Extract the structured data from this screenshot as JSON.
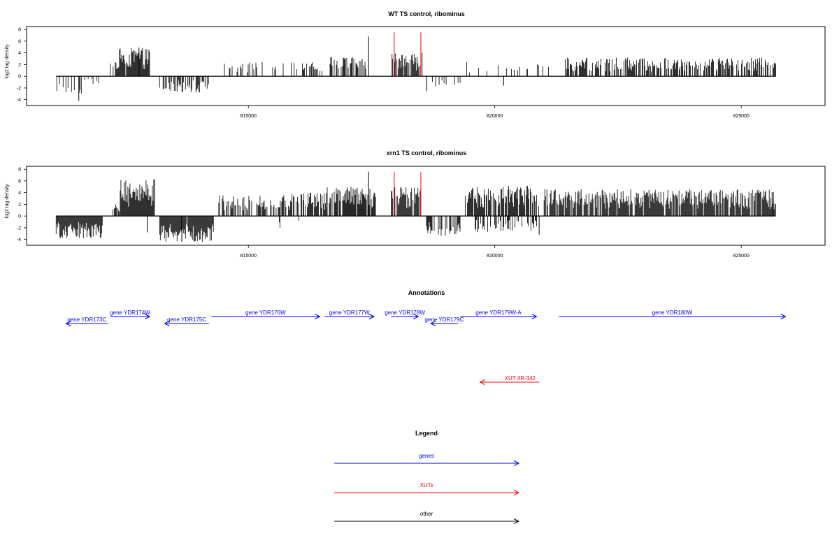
{
  "panels": [
    {
      "title": "WT TS control, ribominus",
      "ylabel": "log2 tag density",
      "yticks": [
        -4,
        -2,
        0,
        2,
        4,
        6,
        8
      ],
      "ylim": [
        -5,
        8.5
      ],
      "xlim": [
        810500,
        826700
      ],
      "xticks": [
        815000,
        820000,
        825000
      ],
      "data_range": [
        811100,
        825700
      ],
      "red_markers": [
        {
          "x": 817960,
          "y": 7.5
        },
        {
          "x": 818500,
          "y": 7.5
        }
      ],
      "segments": [
        {
          "start": 811100,
          "end": 811650,
          "amp": 3.0,
          "sign": -1,
          "density": 0.25
        },
        {
          "start": 811650,
          "end": 812000,
          "amp": 1.5,
          "sign": -1,
          "density": 0.2
        },
        {
          "start": 812200,
          "end": 812300,
          "amp": 2.2,
          "sign": 1,
          "density": 0.35
        },
        {
          "start": 812300,
          "end": 813000,
          "amp": 4.8,
          "sign": 1,
          "density": 0.95
        },
        {
          "start": 813200,
          "end": 814200,
          "amp": 2.8,
          "sign": -1,
          "density": 0.55
        },
        {
          "start": 814500,
          "end": 815800,
          "amp": 2.5,
          "sign": 1,
          "density": 0.18
        },
        {
          "start": 815800,
          "end": 816600,
          "amp": 2.5,
          "sign": 1,
          "density": 0.3
        },
        {
          "start": 816600,
          "end": 817400,
          "amp": 3.3,
          "sign": 1,
          "density": 0.6
        },
        {
          "start": 817900,
          "end": 818550,
          "amp": 4.0,
          "sign": 1,
          "density": 0.7
        },
        {
          "start": 818450,
          "end": 818800,
          "amp": 1.5,
          "sign": -1,
          "density": 0.1
        },
        {
          "start": 818800,
          "end": 819300,
          "amp": 1.8,
          "sign": -1,
          "density": 0.1
        },
        {
          "start": 819400,
          "end": 821200,
          "amp": 2.4,
          "sign": 1,
          "density": 0.15
        },
        {
          "start": 821400,
          "end": 825700,
          "amp": 3.2,
          "sign": 1,
          "density": 0.55
        }
      ],
      "spikes": [
        {
          "x": 817440,
          "y": 6.8
        },
        {
          "x": 811560,
          "y": -4.2
        },
        {
          "x": 818620,
          "y": -2.5
        },
        {
          "x": 820180,
          "y": -1.6
        },
        {
          "x": 812780,
          "y": 4.9
        }
      ]
    },
    {
      "title": "xrn1 TS control, ribominus",
      "ylabel": "log2 tag density",
      "yticks": [
        -4,
        -2,
        0,
        2,
        4,
        6,
        8
      ],
      "ylim": [
        -5,
        8.5
      ],
      "xlim": [
        810500,
        826700
      ],
      "xticks": [
        815000,
        820000,
        825000
      ],
      "data_range": [
        811100,
        825700
      ],
      "red_markers": [
        {
          "x": 817960,
          "y": 7.5
        },
        {
          "x": 818500,
          "y": 7.5
        }
      ],
      "segments": [
        {
          "start": 811100,
          "end": 812050,
          "amp": 3.8,
          "sign": -1,
          "density": 0.95
        },
        {
          "start": 812250,
          "end": 812400,
          "amp": 2.0,
          "sign": 1,
          "density": 0.5
        },
        {
          "start": 812400,
          "end": 813100,
          "amp": 6.3,
          "sign": 1,
          "density": 1.0
        },
        {
          "start": 813200,
          "end": 814300,
          "amp": 4.4,
          "sign": -1,
          "density": 0.95
        },
        {
          "start": 814400,
          "end": 815800,
          "amp": 3.6,
          "sign": 1,
          "density": 0.5
        },
        {
          "start": 815300,
          "end": 816200,
          "amp": 2.0,
          "sign": -1,
          "density": 0.12
        },
        {
          "start": 815800,
          "end": 816600,
          "amp": 4.0,
          "sign": 1,
          "density": 0.75
        },
        {
          "start": 816600,
          "end": 817600,
          "amp": 5.0,
          "sign": 1,
          "density": 0.85
        },
        {
          "start": 817900,
          "end": 818500,
          "amp": 5.0,
          "sign": 1,
          "density": 0.9
        },
        {
          "start": 818600,
          "end": 819300,
          "amp": 3.5,
          "sign": -1,
          "density": 0.55
        },
        {
          "start": 819400,
          "end": 820900,
          "amp": 5.2,
          "sign": 1,
          "density": 0.85
        },
        {
          "start": 819600,
          "end": 820900,
          "amp": 2.8,
          "sign": -1,
          "density": 0.35
        },
        {
          "start": 821000,
          "end": 825700,
          "amp": 4.6,
          "sign": 1,
          "density": 0.85
        }
      ],
      "spikes": [
        {
          "x": 817440,
          "y": 7.6
        },
        {
          "x": 820900,
          "y": -3.2
        },
        {
          "x": 812950,
          "y": -2.8
        },
        {
          "x": 813650,
          "y": -4.4
        },
        {
          "x": 825650,
          "y": 4.1
        }
      ]
    }
  ],
  "annotations": {
    "title": "Annotations",
    "genes": [
      {
        "label": "gene YDR173C",
        "start": 811300,
        "end": 812150,
        "strand": "-",
        "row": 1
      },
      {
        "label": "gene YDR174W",
        "start": 812200,
        "end": 813000,
        "strand": "+",
        "row": 0
      },
      {
        "label": "gene YDR175C",
        "start": 813300,
        "end": 814200,
        "strand": "-",
        "row": 1
      },
      {
        "label": "gene YDR176W",
        "start": 814250,
        "end": 816450,
        "strand": "+",
        "row": 0
      },
      {
        "label": "gene YDR177W",
        "start": 816550,
        "end": 817550,
        "strand": "+",
        "row": 0
      },
      {
        "label": "gene YDR178W",
        "start": 817900,
        "end": 818450,
        "strand": "+",
        "row": 0
      },
      {
        "label": "gene YDR179C",
        "start": 818700,
        "end": 819250,
        "strand": "-",
        "row": 1
      },
      {
        "label": "gene YDR179W-A",
        "start": 819300,
        "end": 820850,
        "strand": "+",
        "row": 0
      },
      {
        "label": "gene YDR180W",
        "start": 821300,
        "end": 825900,
        "strand": "+",
        "row": 0
      }
    ],
    "xuts": [
      {
        "label": "XUT 4R-342",
        "start": 819700,
        "end": 820900,
        "strand": "-"
      }
    ],
    "colors": {
      "gene": "#0000ff",
      "xut": "#ff0000"
    }
  },
  "legend": {
    "title": "Legend",
    "items": [
      {
        "label": "genes",
        "color": "#0000ff"
      },
      {
        "label": "XUTs",
        "color": "#ff0000"
      },
      {
        "label": "other",
        "color": "#000000"
      }
    ]
  },
  "chart_data": [
    {
      "type": "bar",
      "title": "WT TS control, ribominus",
      "xlabel": "",
      "ylabel": "log2 tag density",
      "xlim": [
        810500,
        826700
      ],
      "ylim": [
        -5,
        8.5
      ],
      "xticks": [
        815000,
        820000,
        825000
      ],
      "yticks": [
        -4,
        -2,
        0,
        2,
        4,
        6,
        8
      ],
      "grid": false,
      "approximate_peaks": {
        "max": 6.8,
        "max_x": 817440,
        "min": -4.2,
        "min_x": 811560
      }
    },
    {
      "type": "bar",
      "title": "xrn1 TS control, ribominus",
      "xlabel": "",
      "ylabel": "log2 tag density",
      "xlim": [
        810500,
        826700
      ],
      "ylim": [
        -5,
        8.5
      ],
      "xticks": [
        815000,
        820000,
        825000
      ],
      "yticks": [
        -4,
        -2,
        0,
        2,
        4,
        6,
        8
      ],
      "grid": false,
      "approximate_peaks": {
        "max": 7.6,
        "max_x": 817440,
        "min": -4.4,
        "min_x": 813650
      }
    }
  ]
}
